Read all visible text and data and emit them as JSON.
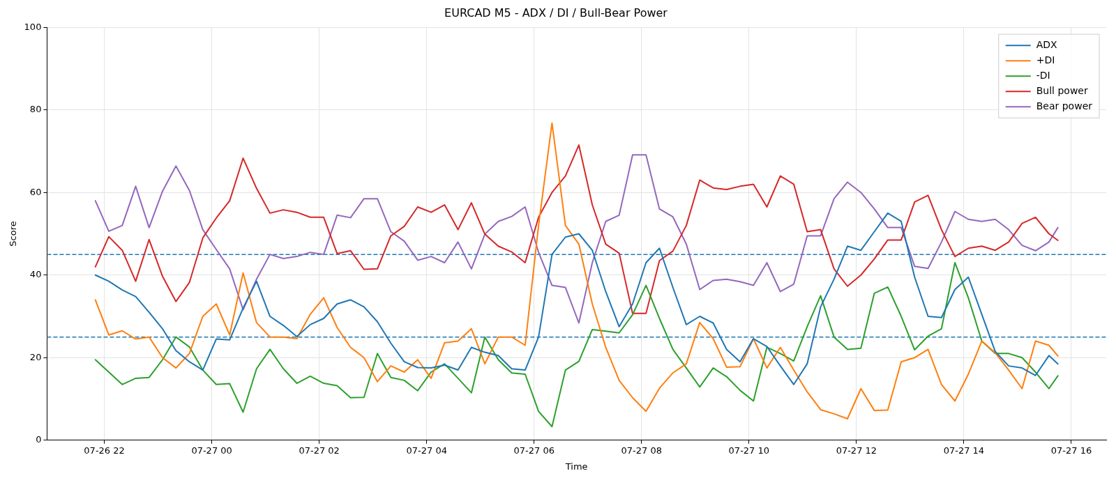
{
  "chart_data": {
    "type": "line",
    "title": "EURCAD M5 - ADX / DI / Bull-Bear Power",
    "xlabel": "Time",
    "ylabel": "Score",
    "x": [
      "--07-26T21:50",
      "--07-26T22:05",
      "--07-26T22:20",
      "--07-26T22:35",
      "--07-26T22:50",
      "--07-26T23:05",
      "--07-26T23:20",
      "--07-26T23:35",
      "--07-26T23:50",
      "--07-27T00:05",
      "--07-27T00:20",
      "--07-27T00:35",
      "--07-27T00:50",
      "--07-27T01:05",
      "--07-27T01:20",
      "--07-27T01:35",
      "--07-27T01:50",
      "--07-27T02:05",
      "--07-27T02:20",
      "--07-27T02:35",
      "--07-27T02:50",
      "--07-27T03:05",
      "--07-27T03:20",
      "--07-27T03:35",
      "--07-27T03:50",
      "--07-27T04:05",
      "--07-27T04:20",
      "--07-27T04:35",
      "--07-27T04:50",
      "--07-27T05:05",
      "--07-27T05:20",
      "--07-27T05:35",
      "--07-27T05:50",
      "--07-27T06:05",
      "--07-27T06:20",
      "--07-27T06:35",
      "--07-27T06:50",
      "--07-27T07:05",
      "--07-27T07:20",
      "--07-27T07:35",
      "--07-27T07:50",
      "--07-27T08:05",
      "--07-27T08:20",
      "--07-27T08:35",
      "--07-27T08:50",
      "--07-27T09:05",
      "--07-27T09:20",
      "--07-27T09:35",
      "--07-27T09:50",
      "--07-27T10:05",
      "--07-27T10:20",
      "--07-27T10:35",
      "--07-27T10:50",
      "--07-27T11:05",
      "--07-27T11:20",
      "--07-27T11:35",
      "--07-27T11:50",
      "--07-27T12:05",
      "--07-27T12:20",
      "--07-27T12:35",
      "--07-27T12:50",
      "--07-27T13:05",
      "--07-27T13:20",
      "--07-27T13:35",
      "--07-27T13:50",
      "--07-27T14:05",
      "--07-27T14:20",
      "--07-27T14:35",
      "--07-27T14:50",
      "--07-27T15:05",
      "--07-27T15:20",
      "--07-27T15:35",
      "--07-27T15:45"
    ],
    "series": [
      {
        "name": "ADX",
        "color": "#1f77b4",
        "values": [
          40,
          38.5,
          36.4,
          34.8,
          31,
          27,
          21.7,
          19,
          17,
          24.5,
          24.3,
          32,
          38.5,
          30,
          27.8,
          25.1,
          28,
          29.5,
          33,
          34,
          32.3,
          28.7,
          23.5,
          19,
          17.6,
          17.5,
          18.2,
          17,
          22.5,
          21.3,
          20.5,
          17.3,
          17,
          25,
          45,
          49.2,
          50,
          46,
          36,
          27.5,
          33,
          43,
          46.5,
          37,
          28,
          30,
          28.4,
          22,
          19,
          24.6,
          22.7,
          18,
          13.5,
          18.5,
          32.3,
          39,
          47,
          46,
          50.5,
          55,
          53,
          39.5,
          30,
          29.7,
          36.5,
          39.5,
          30.5,
          21.5,
          18,
          17.5,
          15.7,
          20.5,
          18.5
        ]
      },
      {
        "name": "+DI",
        "color": "#ff7f0e",
        "values": [
          34,
          25.5,
          26.5,
          24.5,
          25,
          20,
          17.5,
          21,
          30,
          33,
          25.5,
          40.5,
          28.5,
          25,
          25,
          24.6,
          30.5,
          34.5,
          27.3,
          22.5,
          20,
          14.2,
          18,
          16.5,
          19.5,
          15,
          23.6,
          24,
          27,
          18.5,
          25,
          25,
          23,
          52,
          76.8,
          52,
          47.5,
          33,
          22.5,
          14.5,
          10.3,
          7,
          12.6,
          16.3,
          18.5,
          28.5,
          24.6,
          17.7,
          17.8,
          24.6,
          17.5,
          22.5,
          17,
          11.7,
          7.4,
          6.4,
          5.2,
          12.5,
          7.2,
          7.3,
          19,
          20,
          22,
          13.5,
          9.5,
          16,
          24,
          21.2,
          17,
          12.5,
          24,
          23,
          20.4
        ]
      },
      {
        "name": "-DI",
        "color": "#2ca02c",
        "values": [
          19.5,
          16.5,
          13.5,
          15,
          15.2,
          19.5,
          25,
          22.6,
          17,
          13.5,
          13.7,
          6.8,
          17.3,
          22,
          17.3,
          13.8,
          15.5,
          13.8,
          13.2,
          10.3,
          10.4,
          21,
          15.2,
          14.5,
          12,
          16.5,
          18.5,
          15,
          11.5,
          25,
          19.5,
          16.3,
          16,
          7,
          3.3,
          17,
          19.1,
          26.8,
          26.4,
          26,
          30.4,
          37.5,
          29.5,
          22,
          17.5,
          12.9,
          17.5,
          15.4,
          12.1,
          9.5,
          22.5,
          21,
          19.2,
          27.5,
          35,
          25,
          22,
          22.3,
          35.6,
          37.1,
          30,
          21.9,
          25.2,
          27,
          43,
          34.5,
          24,
          21,
          21,
          20,
          16.5,
          12.5,
          15.6
        ]
      },
      {
        "name": "Bull power",
        "color": "#d62728",
        "values": [
          42,
          49.3,
          46,
          38.5,
          48.6,
          39.7,
          33.6,
          38.2,
          49,
          53.8,
          58,
          68.3,
          61,
          55,
          55.8,
          55.2,
          54,
          54,
          45.2,
          45.9,
          41.4,
          41.5,
          49.5,
          51.8,
          56.5,
          55.2,
          57,
          51,
          57.5,
          49.9,
          47,
          45.6,
          43,
          54,
          60,
          64,
          71.5,
          57,
          47.5,
          45.3,
          30.7,
          30.7,
          43.5,
          45.8,
          52,
          63,
          61.1,
          60.7,
          61.5,
          62,
          56.5,
          64,
          62,
          50.5,
          51,
          41.5,
          37.3,
          40,
          43.9,
          48.5,
          48.5,
          57.7,
          59.3,
          51,
          44.5,
          46.5,
          47,
          46,
          48,
          52.5,
          54,
          50,
          48.4
        ]
      },
      {
        "name": "Bear power",
        "color": "#9467bd",
        "values": [
          58,
          50.6,
          52,
          61.5,
          51.5,
          60.3,
          66.4,
          60.5,
          51,
          46.2,
          41.5,
          31.6,
          39,
          45,
          44,
          44.5,
          45.5,
          45,
          54.5,
          53.9,
          58.5,
          58.5,
          50.5,
          48.2,
          43.6,
          44.5,
          43,
          48,
          41.5,
          49.9,
          53,
          54.2,
          56.5,
          45.5,
          37.5,
          37,
          28.4,
          43,
          53,
          54.5,
          69.1,
          69.1,
          56,
          54.1,
          47.5,
          36.5,
          38.7,
          39,
          38.4,
          37.5,
          43,
          36,
          37.8,
          49.5,
          49.5,
          58.5,
          62.5,
          60,
          56,
          51.5,
          51.5,
          42.1,
          41.6,
          48,
          55.4,
          53.5,
          53,
          53.5,
          51,
          47.2,
          45.9,
          48,
          51.5
        ]
      }
    ],
    "xlim": [
      "--07-26T20:56",
      "--07-27T16:39"
    ],
    "xticks": [
      {
        "value": "--07-26T22:00",
        "label": "07-26 22"
      },
      {
        "value": "--07-27T00:00",
        "label": "07-27 00"
      },
      {
        "value": "--07-27T02:00",
        "label": "07-27 02"
      },
      {
        "value": "--07-27T04:00",
        "label": "07-27 04"
      },
      {
        "value": "--07-27T06:00",
        "label": "07-27 06"
      },
      {
        "value": "--07-27T08:00",
        "label": "07-27 08"
      },
      {
        "value": "--07-27T10:00",
        "label": "07-27 10"
      },
      {
        "value": "--07-27T12:00",
        "label": "07-27 12"
      },
      {
        "value": "--07-27T14:00",
        "label": "07-27 14"
      },
      {
        "value": "--07-27T16:00",
        "label": "07-27 16"
      }
    ],
    "ylim": [
      0,
      100
    ],
    "yticks": [
      0,
      20,
      40,
      60,
      80,
      100
    ],
    "ref_lines": [
      {
        "axis": "y",
        "value": 45,
        "color": "#1f77b4",
        "line_style": "dashed"
      },
      {
        "axis": "y",
        "value": 25,
        "color": "#1f77b4",
        "line_style": "dashed"
      }
    ],
    "grid": true,
    "legend": "top right",
    "marker": "none",
    "line_style": "solid"
  }
}
